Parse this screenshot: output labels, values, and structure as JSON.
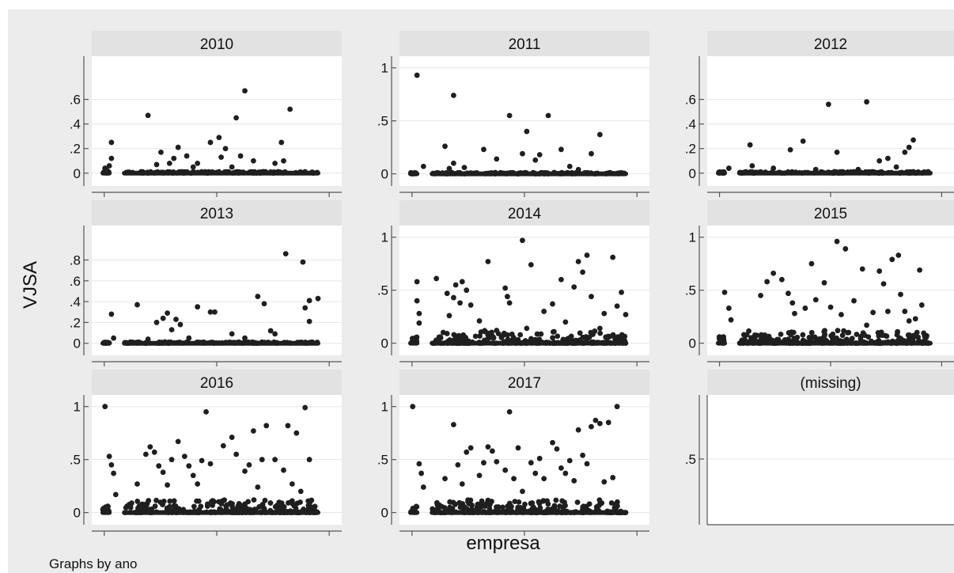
{
  "chart_data": {
    "type": "scatter",
    "layout": "small-multiples 3x3",
    "ylabel": "VJSA",
    "xlabel": "empresa",
    "note": "Graphs by ano",
    "grid": true,
    "colors": {
      "background": "#ececec",
      "plot_background": "#ffffff",
      "strip": "#e2e2e2",
      "marker": "#1f1f1f",
      "gridline": "#e6e6e6",
      "axis": "#555555"
    },
    "x_range": [
      0,
      100
    ],
    "panels": [
      {
        "title": "2010",
        "yticks": [
          "0",
          ".2",
          ".4",
          ".6"
        ],
        "tick_values": [
          0,
          0.2,
          0.4,
          0.6
        ],
        "ylim": [
          -0.04,
          0.9
        ],
        "points": [
          [
            1,
            0.04
          ],
          [
            2,
            0.02
          ],
          [
            3,
            0.06
          ],
          [
            4,
            0.25
          ],
          [
            4,
            0.12
          ],
          [
            21,
            0.47
          ],
          [
            25,
            0.07
          ],
          [
            27,
            0.17
          ],
          [
            31,
            0.08
          ],
          [
            33,
            0.12
          ],
          [
            35,
            0.21
          ],
          [
            39,
            0.14
          ],
          [
            42,
            0.05
          ],
          [
            44,
            0.08
          ],
          [
            50,
            0.25
          ],
          [
            54,
            0.29
          ],
          [
            55,
            0.13
          ],
          [
            57,
            0.2
          ],
          [
            60,
            0.05
          ],
          [
            62,
            0.45
          ],
          [
            64,
            0.14
          ],
          [
            66,
            0.67
          ],
          [
            70,
            0.1
          ],
          [
            78,
            0.01
          ],
          [
            80,
            0.08
          ],
          [
            83,
            0.25
          ],
          [
            84,
            0.1
          ],
          [
            87,
            0.52
          ]
        ],
        "baseline_density": "low"
      },
      {
        "title": "2011",
        "yticks": [
          "0",
          ".5",
          "1"
        ],
        "tick_values": [
          0,
          0.5,
          1
        ],
        "ylim": [
          -0.04,
          1.05
        ],
        "points": [
          [
            3,
            0.93
          ],
          [
            6,
            0.07
          ],
          [
            16,
            0.26
          ],
          [
            18,
            0.05
          ],
          [
            20,
            0.1
          ],
          [
            20,
            0.74
          ],
          [
            25,
            0.06
          ],
          [
            34,
            0.23
          ],
          [
            40,
            0.14
          ],
          [
            46,
            0.55
          ],
          [
            52,
            0.19
          ],
          [
            54,
            0.4
          ],
          [
            58,
            0.13
          ],
          [
            60,
            0.18
          ],
          [
            64,
            0.55
          ],
          [
            70,
            0.23
          ],
          [
            74,
            0.07
          ],
          [
            78,
            0.04
          ],
          [
            84,
            0.19
          ],
          [
            88,
            0.37
          ]
        ],
        "baseline_density": "low"
      },
      {
        "title": "2012",
        "yticks": [
          "0",
          ".2",
          ".4",
          ".6"
        ],
        "tick_values": [
          0,
          0.2,
          0.4,
          0.6
        ],
        "ylim": [
          -0.04,
          0.9
        ],
        "points": [
          [
            5,
            0.04
          ],
          [
            15,
            0.23
          ],
          [
            16,
            0.06
          ],
          [
            26,
            0.04
          ],
          [
            34,
            0.19
          ],
          [
            40,
            0.26
          ],
          [
            46,
            0.03
          ],
          [
            52,
            0.56
          ],
          [
            56,
            0.17
          ],
          [
            66,
            0.03
          ],
          [
            70,
            0.58
          ],
          [
            76,
            0.1
          ],
          [
            80,
            0.12
          ],
          [
            84,
            0.05
          ],
          [
            88,
            0.17
          ],
          [
            90,
            0.21
          ],
          [
            92,
            0.27
          ]
        ],
        "baseline_density": "low"
      },
      {
        "title": "2013",
        "yticks": [
          "0",
          ".2",
          ".4",
          ".6",
          ".8"
        ],
        "tick_values": [
          0,
          0.2,
          0.4,
          0.6,
          0.8
        ],
        "ylim": [
          -0.04,
          1.07
        ],
        "points": [
          [
            4,
            0.28
          ],
          [
            5,
            0.05
          ],
          [
            16,
            0.37
          ],
          [
            21,
            0.04
          ],
          [
            25,
            0.2
          ],
          [
            28,
            0.24
          ],
          [
            30,
            0.29
          ],
          [
            32,
            0.13
          ],
          [
            34,
            0.23
          ],
          [
            36,
            0.18
          ],
          [
            40,
            0.05
          ],
          [
            44,
            0.35
          ],
          [
            50,
            0.3
          ],
          [
            52,
            0.3
          ],
          [
            60,
            0.09
          ],
          [
            66,
            0.05
          ],
          [
            72,
            0.45
          ],
          [
            75,
            0.38
          ],
          [
            78,
            0.12
          ],
          [
            80,
            0.09
          ],
          [
            85,
            0.86
          ],
          [
            93,
            0.78
          ],
          [
            94,
            0.34
          ],
          [
            96,
            0.41
          ],
          [
            96,
            0.21
          ],
          [
            100,
            0.43
          ]
        ],
        "baseline_density": "low"
      },
      {
        "title": "2014",
        "yticks": [
          "0",
          ".5",
          "1"
        ],
        "tick_values": [
          0,
          0.5,
          1
        ],
        "ylim": [
          -0.04,
          1.05
        ],
        "points": [
          [
            3,
            0.58
          ],
          [
            3,
            0.4
          ],
          [
            4,
            0.19
          ],
          [
            4,
            0.28
          ],
          [
            12,
            0.61
          ],
          [
            17,
            0.47
          ],
          [
            18,
            0.26
          ],
          [
            20,
            0.43
          ],
          [
            21,
            0.55
          ],
          [
            23,
            0.38
          ],
          [
            24,
            0.58
          ],
          [
            26,
            0.5
          ],
          [
            28,
            0.36
          ],
          [
            32,
            0.21
          ],
          [
            36,
            0.77
          ],
          [
            40,
            0.12
          ],
          [
            44,
            0.52
          ],
          [
            45,
            0.44
          ],
          [
            46,
            0.38
          ],
          [
            52,
            0.97
          ],
          [
            54,
            0.14
          ],
          [
            56,
            0.74
          ],
          [
            62,
            0.3
          ],
          [
            66,
            0.37
          ],
          [
            70,
            0.6
          ],
          [
            72,
            0.2
          ],
          [
            76,
            0.53
          ],
          [
            78,
            0.77
          ],
          [
            80,
            0.67
          ],
          [
            82,
            0.83
          ],
          [
            84,
            0.44
          ],
          [
            88,
            0.14
          ],
          [
            90,
            0.28
          ],
          [
            94,
            0.81
          ],
          [
            96,
            0.35
          ],
          [
            98,
            0.48
          ],
          [
            100,
            0.27
          ]
        ],
        "baseline_density": "high"
      },
      {
        "title": "2015",
        "yticks": [
          "0",
          ".5",
          "1"
        ],
        "tick_values": [
          0,
          0.5,
          1
        ],
        "ylim": [
          -0.04,
          1.05
        ],
        "points": [
          [
            3,
            0.48
          ],
          [
            5,
            0.33
          ],
          [
            6,
            0.22
          ],
          [
            20,
            0.45
          ],
          [
            23,
            0.58
          ],
          [
            26,
            0.66
          ],
          [
            30,
            0.6
          ],
          [
            33,
            0.47
          ],
          [
            35,
            0.38
          ],
          [
            36,
            0.28
          ],
          [
            41,
            0.33
          ],
          [
            44,
            0.75
          ],
          [
            46,
            0.41
          ],
          [
            50,
            0.57
          ],
          [
            53,
            0.34
          ],
          [
            56,
            0.96
          ],
          [
            58,
            0.27
          ],
          [
            60,
            0.89
          ],
          [
            64,
            0.4
          ],
          [
            68,
            0.7
          ],
          [
            70,
            0.17
          ],
          [
            73,
            0.29
          ],
          [
            76,
            0.68
          ],
          [
            78,
            0.56
          ],
          [
            80,
            0.3
          ],
          [
            82,
            0.79
          ],
          [
            85,
            0.83
          ],
          [
            86,
            0.46
          ],
          [
            88,
            0.3
          ],
          [
            90,
            0.21
          ],
          [
            93,
            0.23
          ],
          [
            95,
            0.69
          ],
          [
            96,
            0.36
          ]
        ],
        "baseline_density": "high"
      },
      {
        "title": "2016",
        "yticks": [
          "0",
          ".5",
          "1"
        ],
        "tick_values": [
          0,
          0.5,
          1
        ],
        "ylim": [
          -0.04,
          1.05
        ],
        "points": [
          [
            1,
            1.0
          ],
          [
            3,
            0.53
          ],
          [
            4,
            0.45
          ],
          [
            5,
            0.37
          ],
          [
            6,
            0.17
          ],
          [
            16,
            0.27
          ],
          [
            20,
            0.55
          ],
          [
            22,
            0.62
          ],
          [
            24,
            0.57
          ],
          [
            26,
            0.44
          ],
          [
            28,
            0.38
          ],
          [
            30,
            0.26
          ],
          [
            32,
            0.5
          ],
          [
            35,
            0.67
          ],
          [
            38,
            0.53
          ],
          [
            40,
            0.44
          ],
          [
            42,
            0.35
          ],
          [
            44,
            0.27
          ],
          [
            46,
            0.49
          ],
          [
            48,
            0.95
          ],
          [
            50,
            0.46
          ],
          [
            56,
            0.63
          ],
          [
            60,
            0.71
          ],
          [
            62,
            0.55
          ],
          [
            66,
            0.39
          ],
          [
            68,
            0.45
          ],
          [
            70,
            0.77
          ],
          [
            72,
            0.24
          ],
          [
            74,
            0.5
          ],
          [
            76,
            0.82
          ],
          [
            80,
            0.5
          ],
          [
            84,
            0.4
          ],
          [
            86,
            0.82
          ],
          [
            88,
            0.27
          ],
          [
            90,
            0.75
          ],
          [
            92,
            0.2
          ],
          [
            94,
            0.99
          ],
          [
            96,
            0.5
          ]
        ],
        "baseline_density": "high"
      },
      {
        "title": "2017",
        "yticks": [
          "0",
          ".5",
          "1"
        ],
        "tick_values": [
          0,
          0.5,
          1
        ],
        "ylim": [
          -0.04,
          1.05
        ],
        "points": [
          [
            1,
            1.0
          ],
          [
            4,
            0.46
          ],
          [
            5,
            0.37
          ],
          [
            6,
            0.24
          ],
          [
            16,
            0.32
          ],
          [
            20,
            0.83
          ],
          [
            22,
            0.45
          ],
          [
            24,
            0.27
          ],
          [
            26,
            0.57
          ],
          [
            28,
            0.61
          ],
          [
            32,
            0.35
          ],
          [
            34,
            0.47
          ],
          [
            36,
            0.62
          ],
          [
            38,
            0.58
          ],
          [
            40,
            0.48
          ],
          [
            44,
            0.4
          ],
          [
            46,
            0.95
          ],
          [
            48,
            0.32
          ],
          [
            50,
            0.61
          ],
          [
            52,
            0.2
          ],
          [
            56,
            0.47
          ],
          [
            58,
            0.37
          ],
          [
            60,
            0.51
          ],
          [
            62,
            0.32
          ],
          [
            66,
            0.66
          ],
          [
            68,
            0.6
          ],
          [
            70,
            0.42
          ],
          [
            72,
            0.37
          ],
          [
            74,
            0.49
          ],
          [
            76,
            0.3
          ],
          [
            78,
            0.78
          ],
          [
            80,
            0.54
          ],
          [
            82,
            0.46
          ],
          [
            84,
            0.81
          ],
          [
            86,
            0.87
          ],
          [
            88,
            0.84
          ],
          [
            90,
            0.29
          ],
          [
            92,
            0.85
          ],
          [
            94,
            0.33
          ],
          [
            96,
            1.0
          ]
        ],
        "baseline_density": "high"
      },
      {
        "title": "(missing)",
        "yticks": [
          ".5"
        ],
        "tick_values": [
          0.5
        ],
        "ylim": [
          0,
          1
        ],
        "points": [],
        "baseline_density": "none"
      }
    ]
  }
}
